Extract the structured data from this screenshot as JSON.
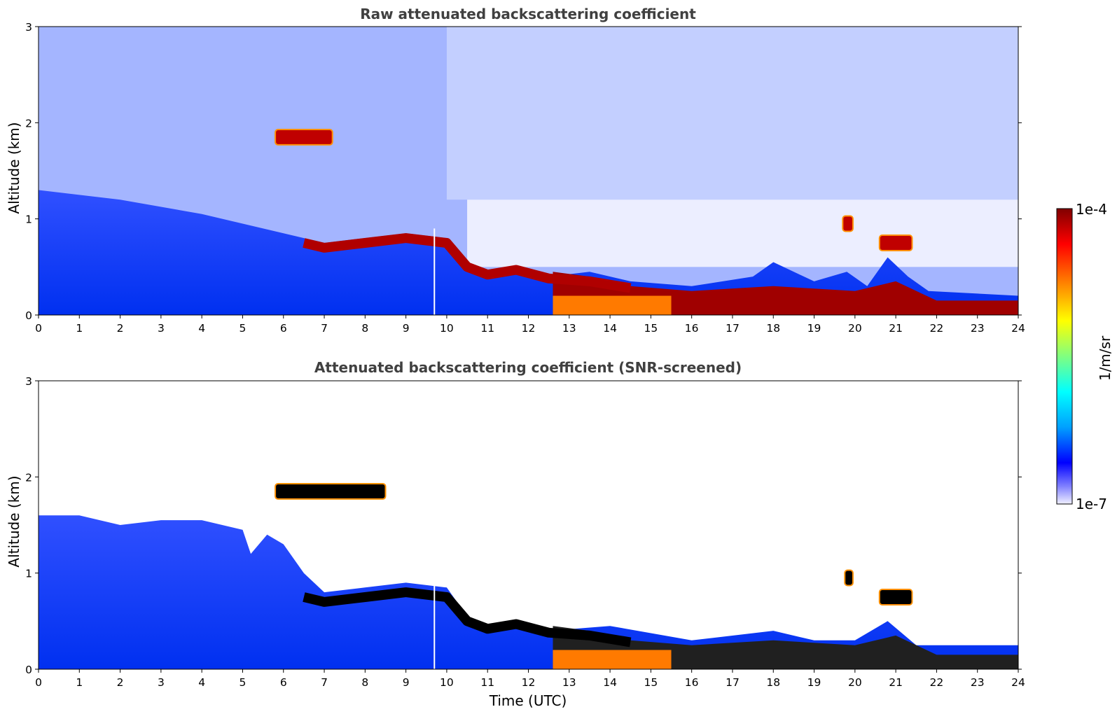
{
  "chart_data": [
    {
      "type": "heatmap",
      "title": "Raw attenuated backscattering coefficient",
      "xlabel": "",
      "ylabel": "Altitude (km)",
      "xlim": [
        0,
        24
      ],
      "ylim": [
        0,
        3
      ],
      "xticks": [
        "0",
        "1",
        "2",
        "3",
        "4",
        "5",
        "6",
        "7",
        "8",
        "9",
        "10",
        "11",
        "12",
        "13",
        "14",
        "15",
        "16",
        "17",
        "18",
        "19",
        "20",
        "21",
        "22",
        "23",
        "24"
      ],
      "yticks": [
        "0",
        "1",
        "2",
        "3"
      ],
      "colorscale": "jet",
      "data_units": "1/m/sr",
      "value_range": [
        1e-07,
        0.0001
      ],
      "features": {
        "boundary_layer_top_km": [
          [
            0,
            1.3
          ],
          [
            2,
            1.2
          ],
          [
            4,
            1.05
          ],
          [
            5,
            0.95
          ],
          [
            6,
            0.85
          ],
          [
            6.5,
            0.8
          ],
          [
            7,
            0.75
          ],
          [
            8,
            0.8
          ],
          [
            9,
            0.85
          ],
          [
            10,
            0.8
          ],
          [
            10.5,
            0.55
          ],
          [
            11,
            0.45
          ],
          [
            11.7,
            0.5
          ],
          [
            12.5,
            0.4
          ],
          [
            13.5,
            0.45
          ],
          [
            14.5,
            0.35
          ],
          [
            16,
            0.3
          ],
          [
            17.5,
            0.4
          ],
          [
            18,
            0.55
          ],
          [
            19,
            0.35
          ],
          [
            19.8,
            0.45
          ],
          [
            20.3,
            0.3
          ],
          [
            20.8,
            0.6
          ],
          [
            21.3,
            0.4
          ],
          [
            21.8,
            0.25
          ],
          [
            24,
            0.2
          ]
        ],
        "cloud_layers": [
          {
            "x_start": 5.8,
            "x_end": 7.2,
            "altitude_km": 1.85
          },
          {
            "x_start": 19.7,
            "x_end": 19.95,
            "altitude_km": 0.95
          },
          {
            "x_start": 20.6,
            "x_end": 21.4,
            "altitude_km": 0.75
          }
        ]
      }
    },
    {
      "type": "heatmap",
      "title": "Attenuated backscattering coefficient (SNR-screened)",
      "xlabel": "Time (UTC)",
      "ylabel": "Altitude (km)",
      "xlim": [
        0,
        24
      ],
      "ylim": [
        0,
        3
      ],
      "xticks": [
        "0",
        "1",
        "2",
        "3",
        "4",
        "5",
        "6",
        "7",
        "8",
        "9",
        "10",
        "11",
        "12",
        "13",
        "14",
        "15",
        "16",
        "17",
        "18",
        "19",
        "20",
        "21",
        "22",
        "23",
        "24"
      ],
      "yticks": [
        "0",
        "1",
        "2",
        "3"
      ],
      "colorscale": "jet",
      "data_units": "1/m/sr",
      "value_range": [
        1e-07,
        0.0001
      ],
      "features": {
        "screened_region_top_km": [
          [
            0,
            1.6
          ],
          [
            1,
            1.6
          ],
          [
            2,
            1.5
          ],
          [
            3,
            1.55
          ],
          [
            4,
            1.55
          ],
          [
            5,
            1.45
          ],
          [
            5.2,
            1.2
          ],
          [
            5.6,
            1.4
          ],
          [
            6,
            1.3
          ],
          [
            6.5,
            1.0
          ],
          [
            7,
            0.8
          ],
          [
            8,
            0.85
          ],
          [
            9,
            0.9
          ],
          [
            10,
            0.85
          ],
          [
            10.5,
            0.55
          ],
          [
            11,
            0.45
          ],
          [
            12.5,
            0.4
          ],
          [
            14,
            0.45
          ],
          [
            16,
            0.3
          ],
          [
            18,
            0.4
          ],
          [
            19,
            0.3
          ],
          [
            20,
            0.3
          ],
          [
            20.8,
            0.5
          ],
          [
            21.5,
            0.25
          ],
          [
            24,
            0.25
          ]
        ],
        "cloud_layers": [
          {
            "x_start": 5.8,
            "x_end": 8.5,
            "altitude_km": 1.85
          },
          {
            "x_start": 19.75,
            "x_end": 19.95,
            "altitude_km": 0.95
          },
          {
            "x_start": 20.6,
            "x_end": 21.4,
            "altitude_km": 0.75
          }
        ]
      }
    }
  ],
  "colorbar": {
    "label": "1/m/sr",
    "max_label": "1e-4",
    "min_label": "1e-7",
    "colors": [
      "#f0f0ff",
      "#c0c0ff",
      "#0000ff",
      "#00a0ff",
      "#00ffff",
      "#80ff80",
      "#ffff00",
      "#ff8000",
      "#ff0000",
      "#800000"
    ]
  }
}
